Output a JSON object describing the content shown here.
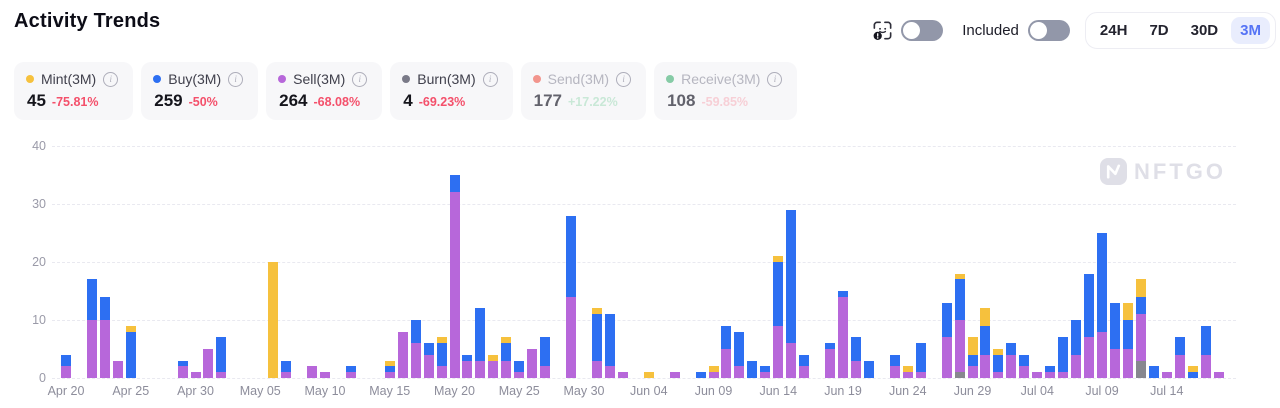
{
  "header": {
    "title": "Activity Trends",
    "included_label": "Included",
    "ranges": [
      {
        "label": "24H",
        "active": false
      },
      {
        "label": "7D",
        "active": false
      },
      {
        "label": "30D",
        "active": false
      },
      {
        "label": "3M",
        "active": true
      }
    ]
  },
  "legend": {
    "cards": [
      {
        "key": "mint",
        "label": "Mint(3M)",
        "value": "45",
        "change": "-75.81%",
        "dot": "#f6c13d",
        "change_color": "#f4506b",
        "state": "active"
      },
      {
        "key": "buy",
        "label": "Buy(3M)",
        "value": "259",
        "change": "-50%",
        "dot": "#2d6ff2",
        "change_color": "#f4506b",
        "state": "active"
      },
      {
        "key": "sell",
        "label": "Sell(3M)",
        "value": "264",
        "change": "-68.08%",
        "dot": "#b767da",
        "change_color": "#f4506b",
        "state": "active"
      },
      {
        "key": "burn",
        "label": "Burn(3M)",
        "value": "4",
        "change": "-69.23%",
        "dot": "#7a7a88",
        "change_color": "#f4506b",
        "state": "active"
      },
      {
        "key": "send",
        "label": "Send(3M)",
        "value": "177",
        "change": "+17.22%",
        "dot": "#f2958d",
        "change_color": "#c9e8d7",
        "state": "disabled"
      },
      {
        "key": "receive",
        "label": "Receive(3M)",
        "value": "108",
        "change": "-59.85%",
        "dot": "#86cba6",
        "change_color": "#f7cfd6",
        "state": "disabled"
      }
    ]
  },
  "watermark": "NFTGO",
  "chart_data": {
    "type": "bar",
    "stacked": true,
    "title": "Activity Trends",
    "ylim": [
      0,
      40
    ],
    "y_ticks": [
      0,
      10,
      20,
      30,
      40
    ],
    "grid": "dashed-horizontal",
    "x_start_date": "Apr 20",
    "x_days_total": 90,
    "x_tick_every_days": 5,
    "x_tick_labels": [
      "Apr 20",
      "Apr 25",
      "Apr 30",
      "May 05",
      "May 10",
      "May 15",
      "May 20",
      "May 25",
      "May 30",
      "Jun 04",
      "Jun 09",
      "Jun 14",
      "Jun 19",
      "Jun 24",
      "Jun 29",
      "Jul 04",
      "Jul 09",
      "Jul 14"
    ],
    "stack_order_bottom_to_top": [
      "burn",
      "sell",
      "buy",
      "mint"
    ],
    "colors": {
      "mint": "#f6c13d",
      "buy": "#2d6ff2",
      "sell": "#b767da",
      "burn": "#87878f"
    },
    "series_totals": {
      "mint": 45,
      "buy": 259,
      "sell": 264,
      "burn": 4,
      "send": 177,
      "receive": 108
    },
    "bars_format": [
      "day_index",
      "date",
      "mint",
      "buy",
      "sell",
      "burn"
    ],
    "bars": [
      [
        0,
        "Apr 20",
        0,
        2,
        2,
        0
      ],
      [
        2,
        "Apr 22",
        0,
        7,
        10,
        0
      ],
      [
        3,
        "Apr 23",
        0,
        4,
        10,
        0
      ],
      [
        4,
        "Apr 24",
        0,
        0,
        3,
        0
      ],
      [
        5,
        "Apr 25",
        1,
        8,
        0,
        0
      ],
      [
        9,
        "Apr 29",
        0,
        1,
        2,
        0
      ],
      [
        10,
        "Apr 30",
        0,
        0,
        1,
        0
      ],
      [
        11,
        "May 01",
        0,
        0,
        5,
        0
      ],
      [
        12,
        "May 02",
        0,
        6,
        1,
        0
      ],
      [
        16,
        "May 06",
        20,
        0,
        0,
        0
      ],
      [
        17,
        "May 07",
        0,
        2,
        1,
        0
      ],
      [
        19,
        "May 09",
        0,
        0,
        2,
        0
      ],
      [
        20,
        "May 10",
        0,
        0,
        1,
        0
      ],
      [
        22,
        "May 12",
        0,
        1,
        1,
        0
      ],
      [
        25,
        "May 15",
        1,
        1,
        1,
        0
      ],
      [
        26,
        "May 16",
        0,
        0,
        8,
        0
      ],
      [
        27,
        "May 17",
        0,
        4,
        6,
        0
      ],
      [
        28,
        "May 18",
        0,
        2,
        4,
        0
      ],
      [
        29,
        "May 19",
        1,
        4,
        2,
        0
      ],
      [
        30,
        "May 20",
        0,
        3,
        32,
        0
      ],
      [
        31,
        "May 21",
        0,
        1,
        3,
        0
      ],
      [
        32,
        "May 22",
        0,
        9,
        3,
        0
      ],
      [
        33,
        "May 23",
        1,
        0,
        3,
        0
      ],
      [
        34,
        "May 24",
        1,
        3,
        3,
        0
      ],
      [
        35,
        "May 25",
        0,
        2,
        1,
        0
      ],
      [
        36,
        "May 26",
        0,
        0,
        5,
        0
      ],
      [
        37,
        "May 27",
        0,
        5,
        2,
        0
      ],
      [
        39,
        "May 29",
        0,
        14,
        14,
        0
      ],
      [
        41,
        "May 31",
        1,
        8,
        3,
        0
      ],
      [
        42,
        "Jun 01",
        0,
        9,
        2,
        0
      ],
      [
        43,
        "Jun 02",
        0,
        0,
        1,
        0
      ],
      [
        45,
        "Jun 04",
        1,
        0,
        0,
        0
      ],
      [
        47,
        "Jun 06",
        0,
        0,
        1,
        0
      ],
      [
        49,
        "Jun 08",
        0,
        1,
        0,
        0
      ],
      [
        50,
        "Jun 09",
        1,
        0,
        1,
        0
      ],
      [
        51,
        "Jun 10",
        0,
        4,
        5,
        0
      ],
      [
        52,
        "Jun 11",
        0,
        6,
        2,
        0
      ],
      [
        53,
        "Jun 12",
        0,
        3,
        0,
        0
      ],
      [
        54,
        "Jun 13",
        0,
        1,
        1,
        0
      ],
      [
        55,
        "Jun 14",
        1,
        11,
        9,
        0
      ],
      [
        56,
        "Jun 15",
        0,
        23,
        6,
        0
      ],
      [
        57,
        "Jun 16",
        0,
        2,
        2,
        0
      ],
      [
        59,
        "Jun 18",
        0,
        1,
        5,
        0
      ],
      [
        60,
        "Jun 19",
        0,
        1,
        14,
        0
      ],
      [
        61,
        "Jun 20",
        0,
        4,
        3,
        0
      ],
      [
        62,
        "Jun 21",
        0,
        3,
        0,
        0
      ],
      [
        64,
        "Jun 23",
        0,
        2,
        2,
        0
      ],
      [
        65,
        "Jun 24",
        1,
        0,
        1,
        0
      ],
      [
        66,
        "Jun 25",
        0,
        5,
        1,
        0
      ],
      [
        68,
        "Jun 27",
        0,
        6,
        7,
        0
      ],
      [
        69,
        "Jun 28",
        1,
        7,
        9,
        1
      ],
      [
        70,
        "Jun 29",
        3,
        2,
        2,
        0
      ],
      [
        71,
        "Jun 30",
        3,
        5,
        4,
        0
      ],
      [
        72,
        "Jul 01",
        1,
        3,
        1,
        0
      ],
      [
        73,
        "Jul 02",
        0,
        2,
        4,
        0
      ],
      [
        74,
        "Jul 03",
        0,
        2,
        2,
        0
      ],
      [
        75,
        "Jul 04",
        0,
        0,
        1,
        0
      ],
      [
        76,
        "Jul 05",
        0,
        1,
        1,
        0
      ],
      [
        77,
        "Jul 06",
        0,
        6,
        1,
        0
      ],
      [
        78,
        "Jul 07",
        0,
        6,
        4,
        0
      ],
      [
        79,
        "Jul 08",
        0,
        11,
        7,
        0
      ],
      [
        80,
        "Jul 09",
        0,
        17,
        8,
        0
      ],
      [
        81,
        "Jul 10",
        0,
        8,
        5,
        0
      ],
      [
        82,
        "Jul 11",
        3,
        5,
        5,
        0
      ],
      [
        83,
        "Jul 12",
        3,
        3,
        8,
        3
      ],
      [
        84,
        "Jul 13",
        0,
        2,
        0,
        0
      ],
      [
        85,
        "Jul 14",
        0,
        0,
        1,
        0
      ],
      [
        86,
        "Jul 15",
        0,
        3,
        4,
        0
      ],
      [
        87,
        "Jul 16",
        1,
        1,
        0,
        0
      ],
      [
        88,
        "Jul 17",
        0,
        5,
        4,
        0
      ],
      [
        89,
        "Jul 18",
        0,
        0,
        1,
        0
      ]
    ]
  }
}
